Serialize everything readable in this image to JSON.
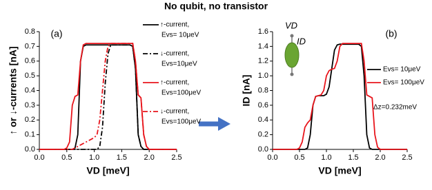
{
  "title": "No qubit, no transistor",
  "chart_data": [
    {
      "type": "line",
      "panel_label": "(a)",
      "x_label": "VD [meV]",
      "y_label": "↑ or ↓-currents [nA]",
      "xlim": [
        0,
        2.5
      ],
      "xticks": [
        {
          "value": 0,
          "label": "0.0"
        },
        0.5,
        {
          "value": 1,
          "label": "1.0"
        },
        1.5,
        {
          "value": 2,
          "label": "2.0"
        },
        2.5
      ],
      "ylim": [
        0,
        0.8
      ],
      "yticks": [
        {
          "value": 0,
          "label": "0.0"
        },
        0.1,
        0.2,
        0.3,
        0.4,
        0.5,
        0.6,
        0.7,
        0.8
      ],
      "x": [
        0,
        0.05,
        0.1,
        0.15,
        0.2,
        0.25,
        0.3,
        0.35,
        0.4,
        0.45,
        0.5,
        0.55,
        0.6,
        0.65,
        0.7,
        0.75,
        0.8,
        0.85,
        0.9,
        0.95,
        1,
        1.05,
        1.1,
        1.15,
        1.2,
        1.25,
        1.3,
        1.35,
        1.4,
        1.45,
        1.5,
        1.55,
        1.6,
        1.65,
        1.7,
        1.75,
        1.8,
        1.85,
        1.9,
        1.95,
        2,
        2.05,
        2.1,
        2.15,
        2.2,
        2.25,
        2.3,
        2.35,
        2.4,
        2.45,
        2.5
      ],
      "series": [
        {
          "name": "↑-current,",
          "param": "Evs= 10μeV",
          "color": "#000000",
          "dash": "solid",
          "values": [
            0,
            0,
            0,
            0,
            0,
            0,
            0,
            0,
            0,
            0,
            0,
            0,
            0,
            0.01,
            0.1,
            0.6,
            0.7,
            0.71,
            0.71,
            0.71,
            0.71,
            0.71,
            0.71,
            0.71,
            0.71,
            0.71,
            0.71,
            0.71,
            0.71,
            0.71,
            0.71,
            0.71,
            0.71,
            0.71,
            0.7,
            0.55,
            0.1,
            0.02,
            0,
            0,
            0,
            0,
            0,
            0,
            0,
            0,
            0,
            0,
            0,
            0,
            0
          ]
        },
        {
          "name": "↓-current,",
          "param": "Evs=10μeV",
          "color": "#000000",
          "dash": "dashdot",
          "values": [
            0,
            0,
            0,
            0,
            0,
            0,
            0,
            0,
            0,
            0,
            0,
            0,
            0,
            0,
            0,
            0,
            0,
            0,
            0,
            0,
            0,
            0,
            0.02,
            0.15,
            0.45,
            0.65,
            0.71,
            0.71,
            0.71,
            0.71,
            0.71,
            0.71,
            0.71,
            0.71,
            0.7,
            0.55,
            0.1,
            0.02,
            0,
            0,
            0,
            0,
            0,
            0,
            0,
            0,
            0,
            0,
            0,
            0,
            0
          ]
        },
        {
          "name": "↑-current,",
          "param": "Evs=100μeV",
          "color": "#e8141b",
          "dash": "solid",
          "values": [
            0,
            0,
            0,
            0,
            0,
            0,
            0,
            0,
            0,
            0,
            0.01,
            0.05,
            0.3,
            0.36,
            0.37,
            0.6,
            0.71,
            0.72,
            0.72,
            0.72,
            0.72,
            0.72,
            0.72,
            0.72,
            0.72,
            0.72,
            0.72,
            0.72,
            0.72,
            0.72,
            0.72,
            0.72,
            0.72,
            0.72,
            0.72,
            0.6,
            0.37,
            0.35,
            0.1,
            0.02,
            0,
            0,
            0,
            0,
            0,
            0,
            0,
            0,
            0,
            0,
            0
          ]
        },
        {
          "name": "↓-current,",
          "param": "Evs=100μeV",
          "color": "#e8141b",
          "dash": "dashdot",
          "values": [
            0,
            0,
            0,
            0,
            0,
            0,
            0,
            0,
            0,
            0,
            0,
            0,
            0,
            0.01,
            0.02,
            0.03,
            0.04,
            0.05,
            0.06,
            0.07,
            0.08,
            0.1,
            0.2,
            0.4,
            0.6,
            0.7,
            0.72,
            0.72,
            0.72,
            0.72,
            0.72,
            0.72,
            0.72,
            0.72,
            0.72,
            0.6,
            0.37,
            0.35,
            0.1,
            0.02,
            0,
            0,
            0,
            0,
            0,
            0,
            0,
            0,
            0,
            0,
            0
          ]
        }
      ]
    },
    {
      "type": "line",
      "panel_label": "(b)",
      "x_label": "VD [meV]",
      "y_label": "ID [nA]",
      "annotation": "Δz=0.232meV",
      "inset_labels": [
        "VD",
        "ID"
      ],
      "xlim": [
        0,
        2.5
      ],
      "xticks": [
        {
          "value": 0,
          "label": "0.0"
        },
        0.5,
        {
          "value": 1,
          "label": "1.0"
        },
        1.5,
        {
          "value": 2,
          "label": "2.0"
        },
        2.5
      ],
      "ylim": [
        0,
        1.6
      ],
      "yticks": [
        {
          "value": 0,
          "label": "0.0"
        },
        0.2,
        0.4,
        0.6,
        0.8,
        {
          "value": 1,
          "label": "1.0"
        },
        1.2,
        1.4,
        1.6
      ],
      "x": [
        0,
        0.05,
        0.1,
        0.15,
        0.2,
        0.25,
        0.3,
        0.35,
        0.4,
        0.45,
        0.5,
        0.55,
        0.6,
        0.65,
        0.7,
        0.75,
        0.8,
        0.85,
        0.9,
        0.95,
        1,
        1.05,
        1.1,
        1.15,
        1.2,
        1.25,
        1.3,
        1.35,
        1.4,
        1.45,
        1.5,
        1.55,
        1.6,
        1.65,
        1.7,
        1.75,
        1.8,
        1.85,
        1.9,
        1.95,
        2,
        2.05,
        2.1,
        2.15,
        2.2,
        2.25,
        2.3,
        2.35,
        2.4,
        2.45,
        2.5
      ],
      "series": [
        {
          "name": "Evs= 10μeV",
          "color": "#000000",
          "dash": "solid",
          "values": [
            0,
            0,
            0,
            0,
            0,
            0,
            0,
            0,
            0,
            0,
            0,
            0,
            0,
            0.02,
            0.2,
            0.6,
            0.72,
            0.73,
            0.73,
            0.73,
            0.75,
            0.85,
            1.1,
            1.35,
            1.42,
            1.43,
            1.43,
            1.43,
            1.43,
            1.43,
            1.43,
            1.43,
            1.43,
            1.4,
            1.0,
            0.2,
            0.02,
            0,
            0,
            0,
            0,
            0,
            0,
            0,
            0,
            0,
            0,
            0,
            0,
            0,
            0
          ]
        },
        {
          "name": "Evs= 100μeV",
          "color": "#e8141b",
          "dash": "solid",
          "values": [
            0,
            0,
            0,
            0,
            0,
            0,
            0,
            0,
            0,
            0,
            0.02,
            0.1,
            0.3,
            0.36,
            0.4,
            0.6,
            0.72,
            0.73,
            0.74,
            0.8,
            1.0,
            1.07,
            1.09,
            1.1,
            1.2,
            1.4,
            1.44,
            1.44,
            1.44,
            1.44,
            1.44,
            1.44,
            1.44,
            1.44,
            1.2,
            0.74,
            0.72,
            0.7,
            0.2,
            0.03,
            0,
            0,
            0,
            0,
            0,
            0,
            0,
            0,
            0,
            0,
            0
          ]
        }
      ]
    }
  ]
}
